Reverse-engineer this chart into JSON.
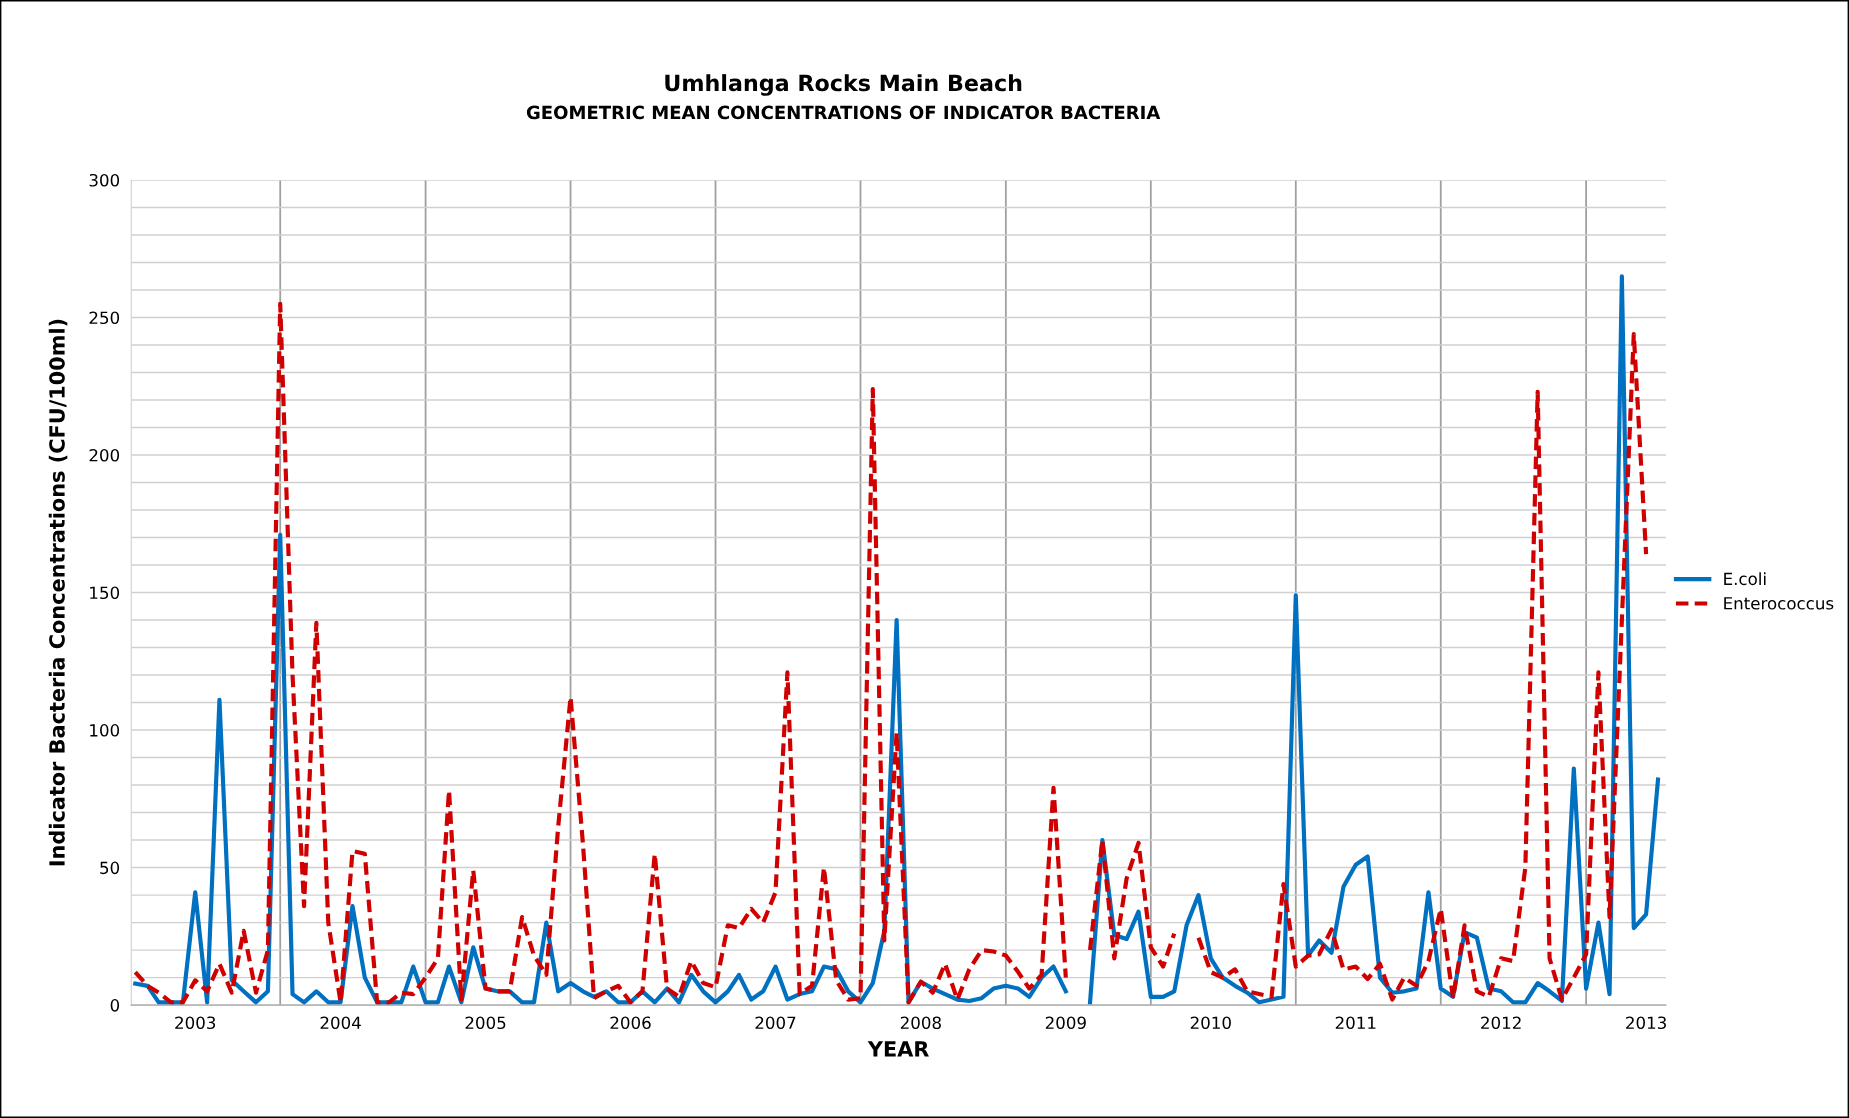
{
  "chart_data": {
    "type": "line",
    "title": "Umhlanga Rocks Main Beach",
    "subtitle": "GEOMETRIC MEAN CONCENTRATIONS OF INDICATOR BACTERIA",
    "xlabel": "YEAR",
    "ylabel": "Indicator Bacteria Concentrations (CFU/100ml)",
    "x": [
      "2003-01",
      "2003-02",
      "2003-03",
      "2003-04",
      "2003-05",
      "2003-06",
      "2003-07",
      "2003-08",
      "2003-09",
      "2003-10",
      "2003-11",
      "2003-12",
      "2004-01",
      "2004-02",
      "2004-03",
      "2004-04",
      "2004-05",
      "2004-06",
      "2004-07",
      "2004-08",
      "2004-09",
      "2004-10",
      "2004-11",
      "2004-12",
      "2005-01",
      "2005-02",
      "2005-03",
      "2005-04",
      "2005-05",
      "2005-06",
      "2005-07",
      "2005-08",
      "2005-09",
      "2005-10",
      "2005-11",
      "2005-12",
      "2006-01",
      "2006-02",
      "2006-03",
      "2006-04",
      "2006-05",
      "2006-06",
      "2006-07",
      "2006-08",
      "2006-09",
      "2006-10",
      "2006-11",
      "2006-12",
      "2007-01",
      "2007-02",
      "2007-03",
      "2007-04",
      "2007-05",
      "2007-06",
      "2007-07",
      "2007-08",
      "2007-09",
      "2007-10",
      "2007-11",
      "2007-12",
      "2008-01",
      "2008-02",
      "2008-03",
      "2008-04",
      "2008-05",
      "2008-06",
      "2008-07",
      "2008-08",
      "2008-09",
      "2008-10",
      "2008-11",
      "2008-12",
      "2009-01",
      "2009-02",
      "2009-03",
      "2009-04",
      "2009-05",
      "2009-06",
      "2009-07",
      "2009-08",
      "2009-09",
      "2009-10",
      "2009-11",
      "2009-12",
      "2010-01",
      "2010-02",
      "2010-03",
      "2010-04",
      "2010-05",
      "2010-06",
      "2010-07",
      "2010-08",
      "2010-09",
      "2010-10",
      "2010-11",
      "2010-12",
      "2011-01",
      "2011-02",
      "2011-03",
      "2011-04",
      "2011-05",
      "2011-06",
      "2011-07",
      "2011-08",
      "2011-09",
      "2011-10",
      "2011-11",
      "2011-12",
      "2012-01",
      "2012-02",
      "2012-03",
      "2012-04",
      "2012-05",
      "2012-06",
      "2012-07",
      "2012-08",
      "2012-09",
      "2012-10",
      "2012-11",
      "2012-12",
      "2013-01",
      "2013-02",
      "2013-03",
      "2013-04",
      "2013-05",
      "2013-06",
      "2013-07"
    ],
    "series": [
      {
        "name": "E.coli",
        "color": "#0070c0",
        "line_style": "solid",
        "values": [
          7.8,
          7,
          1,
          1,
          1,
          41,
          1,
          111,
          9,
          5,
          1,
          5,
          171,
          4,
          1,
          5,
          1,
          1,
          36,
          10,
          1,
          1,
          1,
          14,
          1,
          1,
          14,
          1,
          21,
          6,
          5,
          5,
          1,
          1,
          30,
          5,
          8,
          5,
          3,
          5,
          1,
          1,
          5,
          1,
          6,
          1,
          11,
          5,
          1,
          5,
          11,
          2,
          5,
          14,
          2,
          4,
          5,
          14,
          13,
          5,
          1,
          8,
          27,
          140,
          1,
          8.5,
          6,
          4,
          2,
          1.5,
          2.5,
          6,
          7,
          6,
          3,
          10,
          14,
          5,
          null,
          1,
          60,
          25.5,
          24,
          34,
          3,
          3,
          5,
          29,
          40,
          17,
          10,
          7,
          4.5,
          1,
          2,
          3,
          149,
          18,
          23.5,
          19,
          43,
          51,
          54,
          10,
          4.5,
          5,
          6,
          41,
          6,
          3,
          26.5,
          24.5,
          6,
          5,
          1,
          1,
          8,
          5,
          1.5,
          86,
          6,
          30,
          4,
          265,
          28,
          33,
          82
        ]
      },
      {
        "name": "Enterococcus",
        "color": "#d00000",
        "line_style": "dashed",
        "values": [
          12,
          7,
          4.5,
          1,
          1,
          9,
          5,
          15,
          4.5,
          27,
          4.5,
          20,
          255,
          120,
          36,
          139,
          30,
          1,
          56,
          55,
          1,
          1,
          4.5,
          4,
          10,
          17,
          78,
          2,
          49,
          6,
          5,
          5,
          32,
          18,
          11,
          65,
          112,
          59,
          2.5,
          5,
          7,
          1,
          5,
          55,
          6,
          3,
          16,
          8,
          6.5,
          29,
          28,
          35,
          30,
          41,
          121,
          4,
          7,
          50,
          9,
          2,
          2.5,
          224,
          23.5,
          99,
          1,
          8.5,
          4.5,
          15,
          2,
          13,
          20,
          19.5,
          18,
          12,
          6,
          11,
          79,
          10,
          null,
          20,
          60,
          17,
          46,
          59,
          21,
          14,
          26,
          null,
          24.5,
          12,
          10,
          13,
          5,
          4,
          3,
          44,
          14,
          18,
          18.5,
          27.5,
          13,
          14,
          9.5,
          15,
          2,
          10,
          7,
          16,
          35,
          2.5,
          29,
          5,
          3,
          17,
          16,
          50,
          223,
          17,
          2,
          10,
          18.5,
          121,
          32,
          140,
          244,
          164,
          null
        ]
      }
    ],
    "xlim": [
      "2002-12-22",
      "2013-07-21"
    ],
    "xticks": [
      {
        "value": "2003-06",
        "label": "2003"
      },
      {
        "value": "2004-06",
        "label": "2004"
      },
      {
        "value": "2005-06",
        "label": "2005"
      },
      {
        "value": "2006-06",
        "label": "2006"
      },
      {
        "value": "2007-06",
        "label": "2007"
      },
      {
        "value": "2008-06",
        "label": "2008"
      },
      {
        "value": "2009-06",
        "label": "2009"
      },
      {
        "value": "2010-06",
        "label": "2010"
      },
      {
        "value": "2011-06",
        "label": "2011"
      },
      {
        "value": "2012-06",
        "label": "2012"
      },
      {
        "value": "2013-06",
        "label": "2013"
      }
    ],
    "ylim": [
      0,
      300
    ],
    "yticks": [
      0,
      {
        "value": 10,
        "label": null
      },
      {
        "value": 20,
        "label": null
      },
      {
        "value": 30,
        "label": null
      },
      {
        "value": 40,
        "label": null
      },
      50,
      {
        "value": 60,
        "label": null
      },
      {
        "value": 70,
        "label": null
      },
      {
        "value": 80,
        "label": null
      },
      {
        "value": 90,
        "label": null
      },
      100,
      {
        "value": 110,
        "label": null
      },
      {
        "value": 120,
        "label": null
      },
      {
        "value": 130,
        "label": null
      },
      {
        "value": 140,
        "label": null
      },
      150,
      {
        "value": 160,
        "label": null
      },
      {
        "value": 170,
        "label": null
      },
      {
        "value": 180,
        "label": null
      },
      {
        "value": 190,
        "label": null
      },
      200,
      {
        "value": 210,
        "label": null
      },
      {
        "value": 220,
        "label": null
      },
      {
        "value": 230,
        "label": null
      },
      {
        "value": 240,
        "label": null
      },
      250,
      {
        "value": 260,
        "label": null
      },
      {
        "value": 270,
        "label": null
      },
      {
        "value": 280,
        "label": null
      },
      {
        "value": 290,
        "label": null
      },
      300
    ],
    "ref_lines": [
      {
        "axis": "x",
        "value": "2004-01",
        "color": "#a0a0a0"
      },
      {
        "axis": "x",
        "value": "2005-01",
        "color": "#a0a0a0"
      },
      {
        "axis": "x",
        "value": "2006-01",
        "color": "#a0a0a0"
      },
      {
        "axis": "x",
        "value": "2007-01",
        "color": "#a0a0a0"
      },
      {
        "axis": "x",
        "value": "2008-01",
        "color": "#a0a0a0"
      },
      {
        "axis": "x",
        "value": "2009-01",
        "color": "#a0a0a0"
      },
      {
        "axis": "x",
        "value": "2010-01",
        "color": "#a0a0a0"
      },
      {
        "axis": "x",
        "value": "2011-01",
        "color": "#a0a0a0"
      },
      {
        "axis": "x",
        "value": "2012-01",
        "color": "#a0a0a0"
      },
      {
        "axis": "x",
        "value": "2013-01",
        "color": "#a0a0a0"
      }
    ],
    "grid": "y",
    "legend": "right",
    "marker": "none"
  }
}
